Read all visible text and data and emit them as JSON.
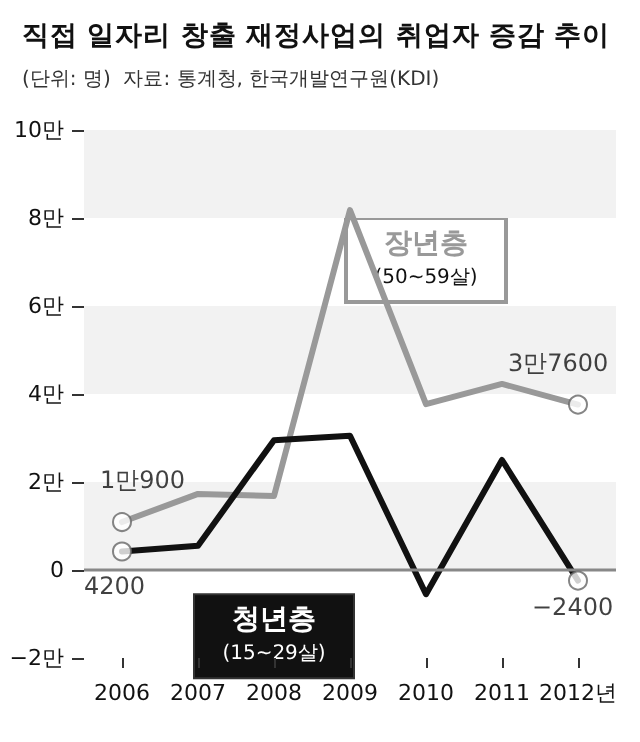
{
  "chart_data": {
    "type": "line",
    "title": "직접 일자리 창출 재정사업의 취업자 증감 추이",
    "subtitle": "(단위: 명)  자료: 통계청, 한국개발연구원(KDI)",
    "categories": [
      "2006",
      "2007",
      "2008",
      "2009",
      "2010",
      "2011",
      "2012년"
    ],
    "series": [
      {
        "name": "장년층 (50~59살)",
        "color": "#999999",
        "values": [
          1.09,
          1.73,
          1.68,
          8.18,
          3.77,
          4.23,
          3.76
        ]
      },
      {
        "name": "청년층 (15~29살)",
        "color": "#111111",
        "values": [
          0.42,
          0.55,
          2.95,
          3.05,
          -0.55,
          2.5,
          -0.24
        ]
      }
    ],
    "annotations": [
      {
        "text": "1만900",
        "x": "2006",
        "y": 1.09
      },
      {
        "text": "3만7600",
        "x": "2012년",
        "y": 3.76
      },
      {
        "text": "4200",
        "x": "2006",
        "y": 0.42
      },
      {
        "text": "−2400",
        "x": "2012년",
        "y": -0.24
      }
    ],
    "ylim": [
      -2,
      10
    ],
    "yticks": [
      {
        "value": -2,
        "label": "−2만"
      },
      0,
      {
        "value": 2,
        "label": "2만"
      },
      {
        "value": 4,
        "label": "4만"
      },
      {
        "value": 6,
        "label": "6만"
      },
      {
        "value": 8,
        "label": "8만"
      },
      {
        "value": 10,
        "label": "10만"
      }
    ],
    "bands": [
      {
        "axis": "y",
        "from": 0,
        "to": 2,
        "color": "#f2f2f2"
      },
      {
        "axis": "y",
        "from": 4,
        "to": 6,
        "color": "#f2f2f2"
      },
      {
        "axis": "y",
        "from": 8,
        "to": 10,
        "color": "#f2f2f2"
      }
    ],
    "ref_lines": [
      {
        "axis": "y",
        "value": 0,
        "color": "#888888"
      }
    ],
    "line_style": "solid",
    "grid": false,
    "legend": false
  }
}
